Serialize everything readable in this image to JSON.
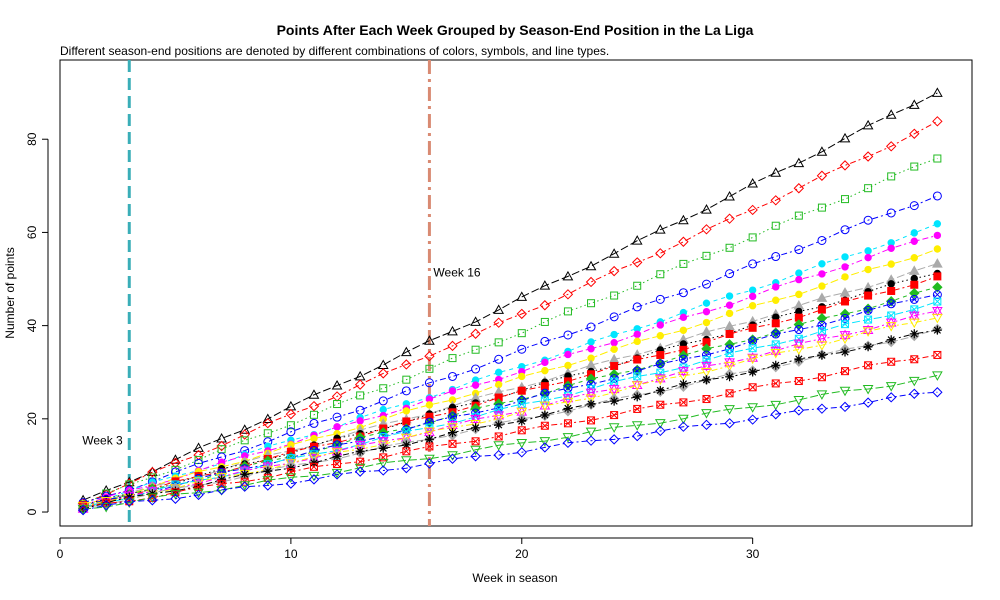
{
  "chart_data": {
    "type": "line",
    "title": "Points After Each Week Grouped by Season-End Position in the La Liga",
    "subtitle": "Different season-end positions are denoted by different combinations of colors, symbols, and line types.",
    "xlabel": "Week in season",
    "ylabel": "Number of points",
    "xlim": [
      0,
      39.5
    ],
    "ylim": [
      -3,
      97
    ],
    "x_ticks": [
      0,
      10,
      20,
      30
    ],
    "y_ticks": [
      0,
      20,
      40,
      60,
      80
    ],
    "x": [
      1,
      2,
      3,
      4,
      5,
      6,
      7,
      8,
      9,
      10,
      11,
      12,
      13,
      14,
      15,
      16,
      17,
      18,
      19,
      20,
      21,
      22,
      23,
      24,
      25,
      26,
      27,
      28,
      29,
      30,
      31,
      32,
      33,
      34,
      35,
      36,
      37,
      38
    ],
    "annotations": [
      {
        "label": "Week 3",
        "x": 3,
        "color": "#3aaeb8",
        "style": "dashed"
      },
      {
        "label": "Week 16",
        "x": 16,
        "color": "#d98a72",
        "style": "dashdot"
      }
    ],
    "series": [
      {
        "final": 90.2,
        "color": "#000000",
        "marker": "triangle",
        "dash": "8,3"
      },
      {
        "final": 83.5,
        "color": "#ff0000",
        "marker": "diamond",
        "dash": "6,3,2,3"
      },
      {
        "final": 76.0,
        "color": "#22bb22",
        "marker": "square",
        "dash": "1.5,3"
      },
      {
        "final": 68.0,
        "color": "#0000ff",
        "marker": "circle",
        "dash": "6,3,2,3"
      },
      {
        "final": 61.5,
        "color": "#00e5ff",
        "marker": "dot",
        "dash": "4,4"
      },
      {
        "final": 59.6,
        "color": "#ff00ff",
        "marker": "dot",
        "dash": "6,3,2,3"
      },
      {
        "final": 56.5,
        "color": "#ffee00",
        "marker": "dot",
        "dash": "8,3"
      },
      {
        "final": 53.0,
        "color": "#aaaaaa",
        "marker": "triangle-filled",
        "dash": "8,3"
      },
      {
        "final": 51.5,
        "color": "#000000",
        "marker": "dot",
        "dash": "1.5,3"
      },
      {
        "final": 50.5,
        "color": "#ff0000",
        "marker": "square-filled",
        "dash": "6,3,2,3"
      },
      {
        "final": 48.0,
        "color": "#22bb22",
        "marker": "diamond-filled",
        "dash": "4,4"
      },
      {
        "final": 47.0,
        "color": "#0000ff",
        "marker": "circle-x",
        "dash": "6,3,2,3"
      },
      {
        "final": 45.0,
        "color": "#00e5ff",
        "marker": "square-x",
        "dash": "8,3"
      },
      {
        "final": 43.0,
        "color": "#ff00ff",
        "marker": "hourglass",
        "dash": "6,3,2,3"
      },
      {
        "final": 42.0,
        "color": "#ffee00",
        "marker": "triangle-down",
        "dash": "6,3,2,3"
      },
      {
        "final": 39.0,
        "color": "#aaaaaa",
        "marker": "diamond-filled",
        "dash": "8,3"
      },
      {
        "final": 39.0,
        "color": "#000000",
        "marker": "asterisk",
        "dash": "6,3,2,3"
      },
      {
        "final": 34.0,
        "color": "#ff0000",
        "marker": "square-x",
        "dash": "6,3,2,3"
      },
      {
        "final": 29.0,
        "color": "#22bb22",
        "marker": "triangle-down",
        "dash": "8,3"
      },
      {
        "final": 25.8,
        "color": "#0000ff",
        "marker": "diamond",
        "dash": "6,3,2,3"
      }
    ]
  }
}
